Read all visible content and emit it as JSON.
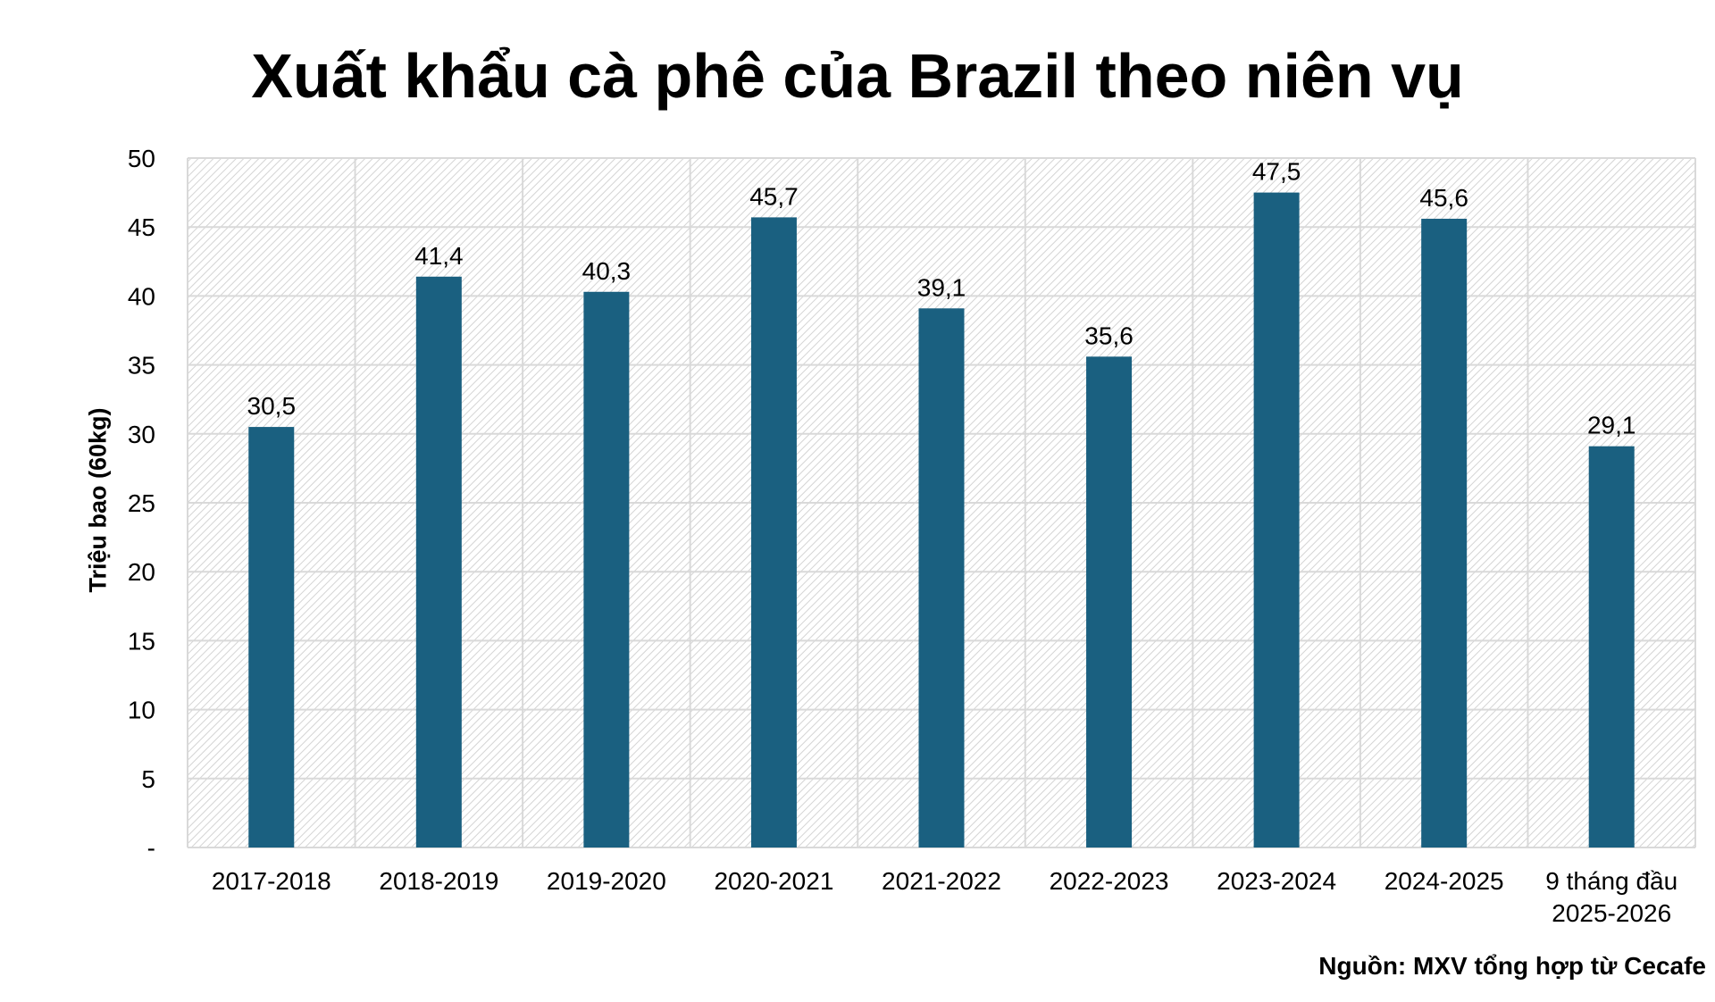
{
  "chart_data": {
    "type": "bar",
    "title": "Xuất khẩu cà phê của Brazil theo niên vụ",
    "xlabel": "",
    "ylabel": "Triệu bao (60kg)",
    "ylim": [
      0,
      50
    ],
    "yticks": [
      0,
      5,
      10,
      15,
      20,
      25,
      30,
      35,
      40,
      45,
      50
    ],
    "ytick_labels": [
      "-",
      "5",
      "10",
      "15",
      "20",
      "25",
      "30",
      "35",
      "40",
      "45",
      "50"
    ],
    "grid": true,
    "categories": [
      "2017-2018",
      "2018-2019",
      "2019-2020",
      "2020-2021",
      "2021-2022",
      "2022-2023",
      "2023-2024",
      "2024-2025",
      "9 tháng đầu\n2025-2026"
    ],
    "values": [
      30.5,
      41.4,
      40.3,
      45.7,
      39.1,
      35.6,
      47.5,
      45.6,
      29.1
    ],
    "data_labels": [
      "30,5",
      "41,4",
      "40,3",
      "45,7",
      "39,1",
      "35,6",
      "47,5",
      "45,6",
      "29,1"
    ],
    "bar_color": "#1a6080",
    "source": "Nguồn: MXV tổng hợp từ Cecafe"
  }
}
